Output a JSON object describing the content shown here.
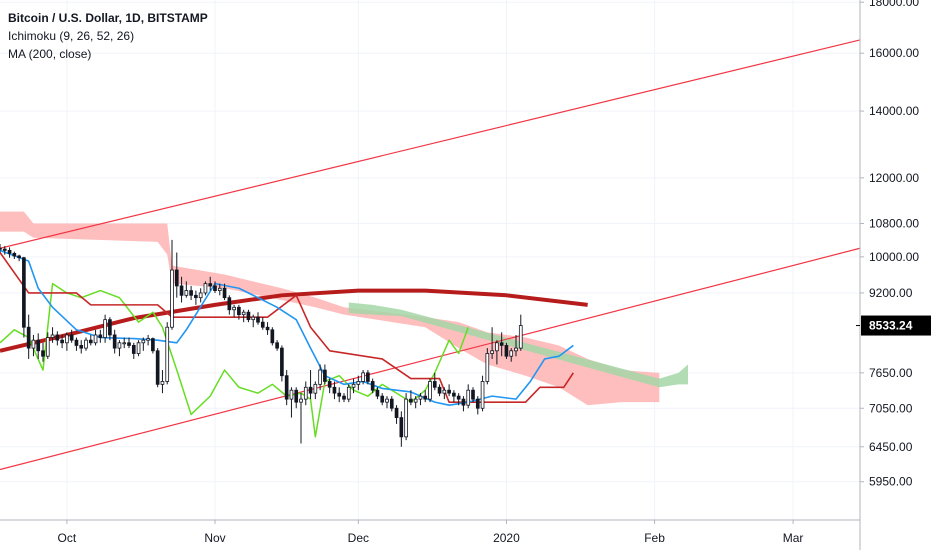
{
  "legend": {
    "title": "Bitcoin / U.S. Dollar, 1D, BITSTAMP",
    "ichimoku": "Ichimoku (9, 26, 52, 26)",
    "ma": "MA (200, close)"
  },
  "last_price_label": "8533.24",
  "colors": {
    "background": "#ffffff",
    "grid": "#f0f3fa",
    "axis": "#b2b5be",
    "text": "#131722",
    "candle": "#131722",
    "tenkan": "#2196f3",
    "kijun": "#c62828",
    "chikou": "#66dd22",
    "ma200": "#b71c1c",
    "trendline": "#f23645",
    "cloud_bear": "#ffb3b3",
    "cloud_bull": "#a5d6a7",
    "price_tag_bg": "#000000",
    "price_tag_text": "#ffffff"
  },
  "chart_data": {
    "type": "candlestick",
    "symbol": "Bitcoin / U.S. Dollar",
    "timeframe": "1D",
    "exchange": "BITSTAMP",
    "scale": "log",
    "x_range": [
      "2019-09-17",
      "2020-03-15"
    ],
    "y_range": [
      5600,
      18600
    ],
    "x_ticks": [
      {
        "date": "2019-10-01",
        "label": "Oct"
      },
      {
        "date": "2019-11-01",
        "label": "Nov"
      },
      {
        "date": "2019-12-01",
        "label": "Dec"
      },
      {
        "date": "2020-01-01",
        "label": "2020"
      },
      {
        "date": "2020-02-01",
        "label": "Feb"
      },
      {
        "date": "2020-03-01",
        "label": "Mar"
      }
    ],
    "y_ticks": [
      18000,
      16000,
      14000,
      12000,
      10800,
      10000,
      9200,
      7650,
      7050,
      6450,
      5950
    ],
    "y_tick_labels": [
      "18000.00",
      "16000.00",
      "14000.00",
      "12000.00",
      "10800.00",
      "10000.00",
      "9200.00",
      "7650.00",
      "7050.00",
      "6450.00",
      "5950.00"
    ],
    "last_price": 8533.24,
    "grid": true,
    "candles": {
      "start_date": "2019-09-17",
      "ohlc": [
        [
          10200,
          10300,
          10100,
          10180
        ],
        [
          10180,
          10250,
          10050,
          10150
        ],
        [
          10150,
          10220,
          9980,
          10080
        ],
        [
          10080,
          10120,
          9950,
          10020
        ],
        [
          10020,
          10050,
          9900,
          9980
        ],
        [
          9980,
          10000,
          8300,
          8500
        ],
        [
          8500,
          8750,
          7900,
          8100
        ],
        [
          8100,
          8350,
          7950,
          8250
        ],
        [
          8250,
          8380,
          7900,
          8050
        ],
        [
          8050,
          8200,
          7850,
          7950
        ],
        [
          7950,
          8400,
          7900,
          8300
        ],
        [
          8300,
          8500,
          8200,
          8350
        ],
        [
          8350,
          8420,
          8150,
          8250
        ],
        [
          8250,
          8350,
          8100,
          8200
        ],
        [
          8200,
          8400,
          8050,
          8350
        ],
        [
          8350,
          8450,
          8200,
          8250
        ],
        [
          8250,
          8300,
          8050,
          8150
        ],
        [
          8150,
          8250,
          8000,
          8100
        ],
        [
          8100,
          8300,
          8050,
          8250
        ],
        [
          8250,
          8350,
          8150,
          8200
        ],
        [
          8200,
          8450,
          8150,
          8350
        ],
        [
          8350,
          8450,
          8200,
          8300
        ],
        [
          8300,
          8750,
          8200,
          8650
        ],
        [
          8650,
          8700,
          8250,
          8350
        ],
        [
          8350,
          8450,
          8000,
          8100
        ],
        [
          8100,
          8250,
          7950,
          8200
        ],
        [
          8200,
          8300,
          8100,
          8200
        ],
        [
          8200,
          8300,
          8100,
          8150
        ],
        [
          8150,
          8200,
          7900,
          8000
        ],
        [
          8000,
          8250,
          7950,
          8200
        ],
        [
          8200,
          8300,
          8050,
          8250
        ],
        [
          8250,
          8350,
          8150,
          8280
        ],
        [
          8280,
          8300,
          8000,
          8050
        ],
        [
          8050,
          8100,
          7400,
          7450
        ],
        [
          7450,
          7700,
          7300,
          7500
        ],
        [
          7500,
          8600,
          7450,
          8500
        ],
        [
          8500,
          10400,
          8450,
          9700
        ],
        [
          9700,
          10100,
          9100,
          9350
        ],
        [
          9350,
          9550,
          9000,
          9150
        ],
        [
          9150,
          9450,
          9100,
          9250
        ],
        [
          9250,
          9350,
          9050,
          9150
        ],
        [
          9150,
          9250,
          8950,
          9100
        ],
        [
          9100,
          9300,
          9000,
          9200
        ],
        [
          9200,
          9450,
          9150,
          9400
        ],
        [
          9400,
          9550,
          9250,
          9350
        ],
        [
          9350,
          9450,
          9200,
          9250
        ],
        [
          9250,
          9400,
          9150,
          9300
        ],
        [
          9300,
          9400,
          9050,
          9100
        ],
        [
          9100,
          9150,
          8750,
          8850
        ],
        [
          8850,
          8950,
          8700,
          8900
        ],
        [
          8900,
          8950,
          8650,
          8750
        ],
        [
          8750,
          8850,
          8600,
          8800
        ],
        [
          8800,
          8850,
          8600,
          8650
        ],
        [
          8650,
          8750,
          8500,
          8700
        ],
        [
          8700,
          8800,
          8550,
          8600
        ],
        [
          8600,
          8700,
          8450,
          8500
        ],
        [
          8500,
          8600,
          8350,
          8450
        ],
        [
          8450,
          8500,
          8150,
          8200
        ],
        [
          8200,
          8250,
          8050,
          8100
        ],
        [
          8100,
          8150,
          7500,
          7600
        ],
        [
          7600,
          7700,
          7100,
          7200
        ],
        [
          7200,
          7400,
          6900,
          7350
        ],
        [
          7350,
          7400,
          7050,
          7150
        ],
        [
          7150,
          7300,
          6500,
          7200
        ],
        [
          7200,
          7500,
          7100,
          7400
        ],
        [
          7400,
          7700,
          7200,
          7300
        ],
        [
          7300,
          7500,
          7200,
          7450
        ],
        [
          7450,
          7800,
          7350,
          7700
        ],
        [
          7700,
          7800,
          7450,
          7500
        ],
        [
          7500,
          7550,
          7300,
          7400
        ],
        [
          7400,
          7500,
          7200,
          7300
        ],
        [
          7300,
          7400,
          7150,
          7250
        ],
        [
          7250,
          7300,
          7150,
          7200
        ],
        [
          7200,
          7450,
          7150,
          7400
        ],
        [
          7400,
          7550,
          7300,
          7450
        ],
        [
          7450,
          7600,
          7350,
          7500
        ],
        [
          7500,
          7700,
          7450,
          7650
        ],
        [
          7650,
          7700,
          7450,
          7500
        ],
        [
          7500,
          7550,
          7300,
          7350
        ],
        [
          7350,
          7400,
          7200,
          7250
        ],
        [
          7250,
          7300,
          7100,
          7150
        ],
        [
          7150,
          7250,
          7050,
          7200
        ],
        [
          7200,
          7250,
          7000,
          7050
        ],
        [
          7050,
          7100,
          6800,
          6900
        ],
        [
          6900,
          7000,
          6450,
          6600
        ],
        [
          6600,
          7300,
          6550,
          7200
        ],
        [
          7200,
          7350,
          7100,
          7150
        ],
        [
          7150,
          7250,
          7050,
          7200
        ],
        [
          7200,
          7300,
          7100,
          7250
        ],
        [
          7250,
          7350,
          7150,
          7200
        ],
        [
          7200,
          7550,
          7150,
          7500
        ],
        [
          7500,
          7650,
          7350,
          7400
        ],
        [
          7400,
          7450,
          7250,
          7300
        ],
        [
          7300,
          7400,
          7200,
          7350
        ],
        [
          7350,
          7450,
          7250,
          7300
        ],
        [
          7300,
          7350,
          7150,
          7250
        ],
        [
          7250,
          7300,
          7100,
          7200
        ],
        [
          7200,
          7250,
          7000,
          7100
        ],
        [
          7100,
          7450,
          7050,
          7350
        ],
        [
          7350,
          7400,
          7150,
          7200
        ],
        [
          7200,
          7250,
          6950,
          7050
        ],
        [
          7050,
          7600,
          7000,
          7500
        ],
        [
          7500,
          8100,
          7450,
          8000
        ],
        [
          8000,
          8500,
          7900,
          8050
        ],
        [
          8050,
          8250,
          7800,
          8200
        ],
        [
          8200,
          8400,
          7950,
          8150
        ],
        [
          8150,
          8200,
          7900,
          7950
        ],
        [
          7950,
          8100,
          7850,
          8050
        ],
        [
          8050,
          8350,
          7950,
          8100
        ],
        [
          8100,
          8750,
          8050,
          8533.24
        ]
      ]
    },
    "tenkan_sen": [
      {
        "x": "2019-09-17",
        "y": 10150
      },
      {
        "x": "2019-09-23",
        "y": 9900
      },
      {
        "x": "2019-09-25",
        "y": 9300
      },
      {
        "x": "2019-09-28",
        "y": 8900
      },
      {
        "x": "2019-10-03",
        "y": 8450
      },
      {
        "x": "2019-10-08",
        "y": 8300
      },
      {
        "x": "2019-10-15",
        "y": 8280
      },
      {
        "x": "2019-10-20",
        "y": 8250
      },
      {
        "x": "2019-10-24",
        "y": 8200
      },
      {
        "x": "2019-10-26",
        "y": 8450
      },
      {
        "x": "2019-11-01",
        "y": 9400
      },
      {
        "x": "2019-11-06",
        "y": 9300
      },
      {
        "x": "2019-11-10",
        "y": 9100
      },
      {
        "x": "2019-11-14",
        "y": 8900
      },
      {
        "x": "2019-11-18",
        "y": 8650
      },
      {
        "x": "2019-11-21",
        "y": 8100
      },
      {
        "x": "2019-11-24",
        "y": 7600
      },
      {
        "x": "2019-11-28",
        "y": 7450
      },
      {
        "x": "2019-12-02",
        "y": 7500
      },
      {
        "x": "2019-12-06",
        "y": 7380
      },
      {
        "x": "2019-12-12",
        "y": 7320
      },
      {
        "x": "2019-12-17",
        "y": 7150
      },
      {
        "x": "2019-12-20",
        "y": 7100
      },
      {
        "x": "2019-12-24",
        "y": 7150
      },
      {
        "x": "2019-12-29",
        "y": 7250
      },
      {
        "x": "2020-01-03",
        "y": 7200
      },
      {
        "x": "2020-01-06",
        "y": 7500
      },
      {
        "x": "2020-01-09",
        "y": 7900
      },
      {
        "x": "2020-01-12",
        "y": 7950
      },
      {
        "x": "2020-01-15",
        "y": 8150
      }
    ],
    "kijun_sen": [
      {
        "x": "2019-09-17",
        "y": 10100
      },
      {
        "x": "2019-09-23",
        "y": 9200
      },
      {
        "x": "2019-10-03",
        "y": 9200
      },
      {
        "x": "2019-10-06",
        "y": 8950
      },
      {
        "x": "2019-10-20",
        "y": 8950
      },
      {
        "x": "2019-10-23",
        "y": 8700
      },
      {
        "x": "2019-11-12",
        "y": 8700
      },
      {
        "x": "2019-11-18",
        "y": 9150
      },
      {
        "x": "2019-11-21",
        "y": 8500
      },
      {
        "x": "2019-11-25",
        "y": 8050
      },
      {
        "x": "2019-12-06",
        "y": 7900
      },
      {
        "x": "2019-12-12",
        "y": 7550
      },
      {
        "x": "2019-12-18",
        "y": 7550
      },
      {
        "x": "2019-12-20",
        "y": 7150
      },
      {
        "x": "2020-01-05",
        "y": 7150
      },
      {
        "x": "2020-01-08",
        "y": 7400
      },
      {
        "x": "2020-01-13",
        "y": 7400
      },
      {
        "x": "2020-01-15",
        "y": 7650
      }
    ],
    "chikou_span": [
      {
        "x": "2019-09-17",
        "y": 8200
      },
      {
        "x": "2019-09-20",
        "y": 8450
      },
      {
        "x": "2019-09-23",
        "y": 8300
      },
      {
        "x": "2019-09-26",
        "y": 7700
      },
      {
        "x": "2019-09-28",
        "y": 9400
      },
      {
        "x": "2019-10-01",
        "y": 9200
      },
      {
        "x": "2019-10-04",
        "y": 9100
      },
      {
        "x": "2019-10-08",
        "y": 9250
      },
      {
        "x": "2019-10-12",
        "y": 9100
      },
      {
        "x": "2019-10-16",
        "y": 8600
      },
      {
        "x": "2019-10-19",
        "y": 8800
      },
      {
        "x": "2019-10-21",
        "y": 8500
      },
      {
        "x": "2019-10-24",
        "y": 7700
      },
      {
        "x": "2019-10-27",
        "y": 6950
      },
      {
        "x": "2019-10-31",
        "y": 7250
      },
      {
        "x": "2019-11-03",
        "y": 7700
      },
      {
        "x": "2019-11-06",
        "y": 7400
      },
      {
        "x": "2019-11-10",
        "y": 7300
      },
      {
        "x": "2019-11-13",
        "y": 7450
      },
      {
        "x": "2019-11-16",
        "y": 7250
      },
      {
        "x": "2019-11-19",
        "y": 7300
      },
      {
        "x": "2019-11-21",
        "y": 7200
      },
      {
        "x": "2019-11-22",
        "y": 6600
      },
      {
        "x": "2019-11-24",
        "y": 7500
      },
      {
        "x": "2019-11-27",
        "y": 7600
      },
      {
        "x": "2019-11-30",
        "y": 7350
      },
      {
        "x": "2019-12-03",
        "y": 7250
      },
      {
        "x": "2019-12-06",
        "y": 7450
      },
      {
        "x": "2019-12-09",
        "y": 7300
      },
      {
        "x": "2019-12-12",
        "y": 7150
      },
      {
        "x": "2019-12-15",
        "y": 7350
      },
      {
        "x": "2019-12-17",
        "y": 7650
      },
      {
        "x": "2019-12-20",
        "y": 8250
      },
      {
        "x": "2019-12-22",
        "y": 8000
      },
      {
        "x": "2019-12-24",
        "y": 8500
      }
    ],
    "ma_200": [
      {
        "x": "2019-09-17",
        "y": 8050
      },
      {
        "x": "2019-10-01",
        "y": 8350
      },
      {
        "x": "2019-10-15",
        "y": 8680
      },
      {
        "x": "2019-11-01",
        "y": 8950
      },
      {
        "x": "2019-11-15",
        "y": 9150
      },
      {
        "x": "2019-12-01",
        "y": 9250
      },
      {
        "x": "2019-12-15",
        "y": 9250
      },
      {
        "x": "2020-01-01",
        "y": 9150
      },
      {
        "x": "2020-01-18",
        "y": 8950
      }
    ],
    "kumo_bearish": [
      {
        "x": "2019-09-17",
        "upper": 11100,
        "lower": 10600
      },
      {
        "x": "2019-09-22",
        "upper": 11100,
        "lower": 10600
      },
      {
        "x": "2019-09-24",
        "upper": 10800,
        "lower": 10450
      },
      {
        "x": "2019-10-20",
        "upper": 10800,
        "lower": 10350
      },
      {
        "x": "2019-10-22",
        "upper": 10800,
        "lower": 10050
      },
      {
        "x": "2019-10-23",
        "upper": 9800,
        "lower": 9400
      },
      {
        "x": "2019-11-03",
        "upper": 9600,
        "lower": 9300
      },
      {
        "x": "2019-11-15",
        "upper": 9300,
        "lower": 9050
      },
      {
        "x": "2019-11-22",
        "upper": 9100,
        "lower": 8900
      },
      {
        "x": "2019-11-28",
        "upper": 8900,
        "lower": 8750
      },
      {
        "x": "2019-12-15",
        "upper": 8700,
        "lower": 8500
      },
      {
        "x": "2019-12-22",
        "upper": 8600,
        "lower": 8100
      },
      {
        "x": "2019-12-28",
        "upper": 8400,
        "lower": 7800
      },
      {
        "x": "2020-01-05",
        "upper": 8300,
        "lower": 7600
      },
      {
        "x": "2020-01-12",
        "upper": 8150,
        "lower": 7400
      },
      {
        "x": "2020-01-18",
        "upper": 7900,
        "lower": 7100
      },
      {
        "x": "2020-01-25",
        "upper": 7700,
        "lower": 7150
      },
      {
        "x": "2020-02-02",
        "upper": 7650,
        "lower": 7150
      }
    ],
    "kumo_bullish": [
      {
        "x": "2019-11-29",
        "upper": 9000,
        "lower": 8780
      },
      {
        "x": "2019-12-04",
        "upper": 8950,
        "lower": 8750
      },
      {
        "x": "2019-12-10",
        "upper": 8850,
        "lower": 8720
      },
      {
        "x": "2020-02-02",
        "upper": 7550,
        "lower": 7400
      },
      {
        "x": "2020-02-06",
        "upper": 7650,
        "lower": 7450
      },
      {
        "x": "2020-02-08",
        "upper": 7800,
        "lower": 7450
      }
    ],
    "trendlines": [
      {
        "name": "upper channel",
        "from": {
          "x": "2019-09-17",
          "y": 10200
        },
        "to": {
          "x": "2020-03-15",
          "y": 16500
        }
      },
      {
        "name": "lower channel",
        "from": {
          "x": "2019-09-17",
          "y": 6120
        },
        "to": {
          "x": "2020-03-15",
          "y": 10200
        }
      }
    ]
  }
}
